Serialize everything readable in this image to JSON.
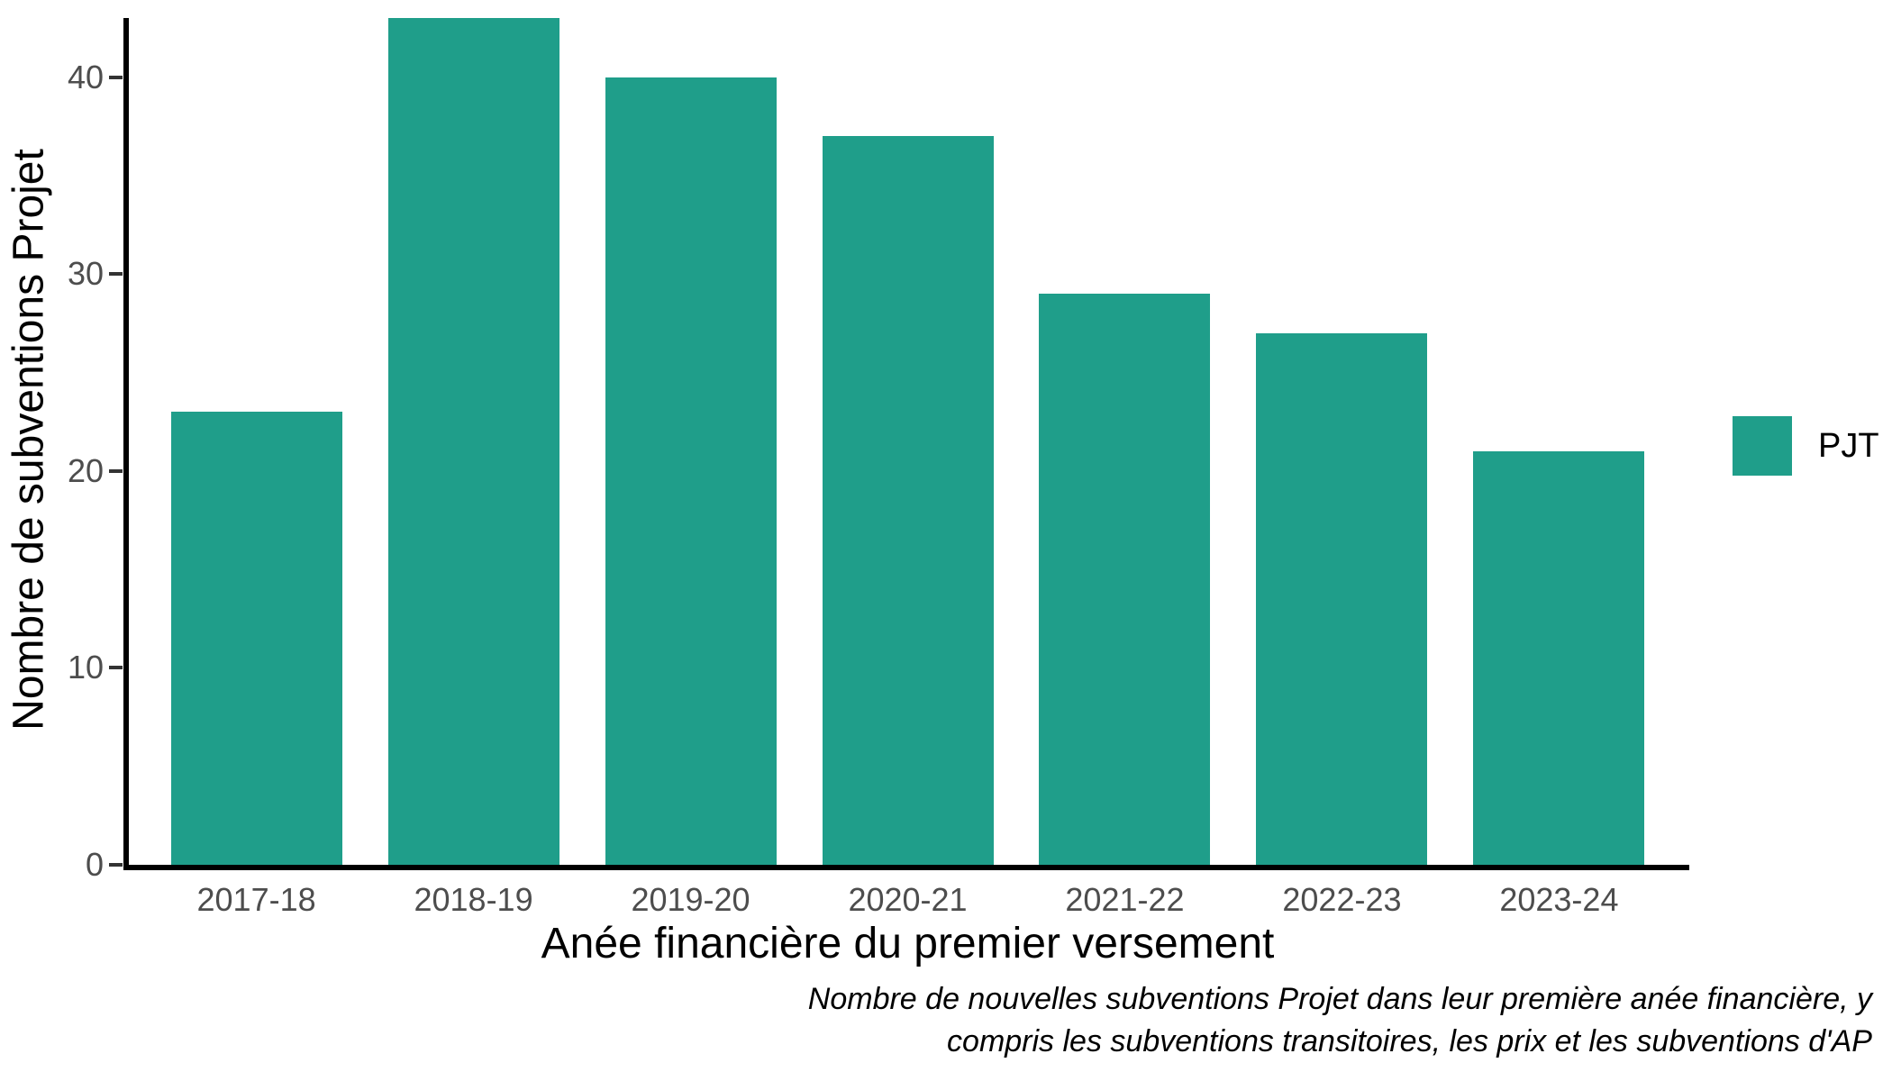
{
  "chart_data": {
    "type": "bar",
    "title": "",
    "categories": [
      "2017-18",
      "2018-19",
      "2019-20",
      "2020-21",
      "2021-22",
      "2022-23",
      "2023-24"
    ],
    "values": [
      23,
      43,
      40,
      37,
      29,
      27,
      21
    ],
    "series_name": "PJT",
    "xlabel": "Anée financière du premier versement",
    "ylabel": "Nombre de subventions Projet",
    "y_ticks": [
      0,
      10,
      20,
      30,
      40
    ],
    "ylim": [
      0,
      43
    ],
    "grid": false,
    "bar_color": "#1f9e8a",
    "axis_color": "#000000",
    "tick_label_color": "#4d4d4d",
    "legend": {
      "position": "right",
      "label": "PJT"
    },
    "caption": {
      "line1": "Nombre de nouvelles subventions Projet dans leur première anée financière, y",
      "line2": "compris les subventions transitoires, les prix et les subventions d'AP"
    }
  }
}
